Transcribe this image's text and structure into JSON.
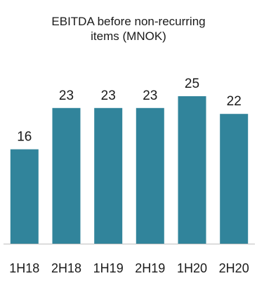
{
  "chart_data": {
    "type": "bar",
    "title_lines": [
      "EBITDA before non-recurring",
      "items (MNOK)"
    ],
    "categories": [
      "1H18",
      "2H18",
      "1H19",
      "2H19",
      "1H20",
      "2H20"
    ],
    "values": [
      16,
      23,
      23,
      23,
      25,
      22
    ],
    "data_labels": [
      "16",
      "23",
      "23",
      "23",
      "25",
      "22"
    ],
    "bar_color": "#31849b",
    "axis_color": "#bfbfbf",
    "grid": false,
    "legend": "none"
  }
}
